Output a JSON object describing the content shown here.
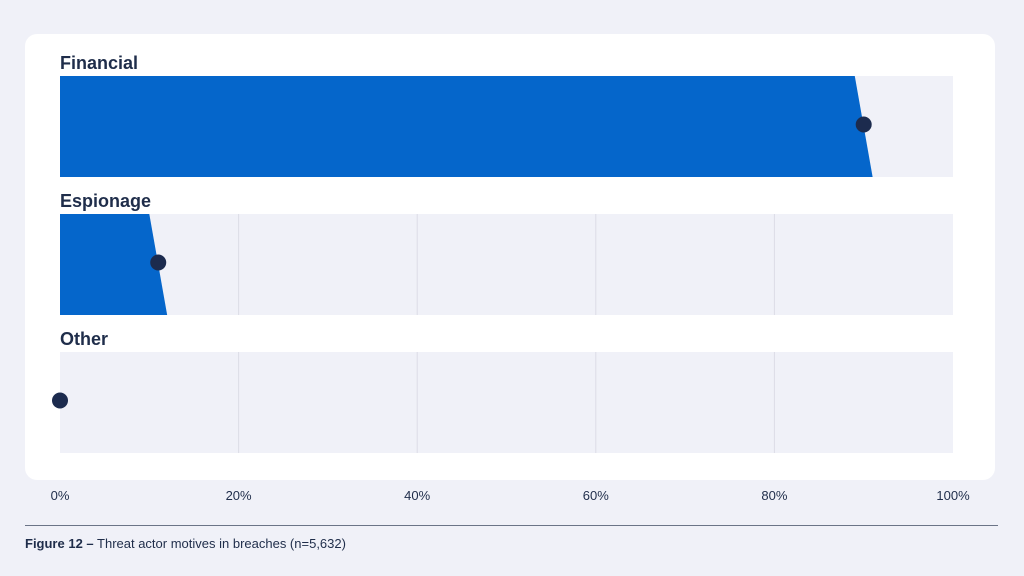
{
  "chart_data": {
    "type": "bar",
    "orientation": "horizontal",
    "categories": [
      "Financial",
      "Espionage",
      "Other"
    ],
    "series": [
      {
        "values": [
          90,
          11,
          0
        ]
      }
    ],
    "interval_low": [
      89,
      10,
      0
    ],
    "interval_high": [
      91,
      12,
      0
    ],
    "xlim": [
      0,
      100
    ],
    "x_ticks": [
      "0%",
      "20%",
      "40%",
      "60%",
      "80%",
      "100%"
    ],
    "grid": true,
    "colors": {
      "bar": "#0566cb",
      "track": "#f0f1f8",
      "point": "#1c2b4e",
      "grid": "#dcdde6"
    }
  },
  "caption": {
    "label": "Figure 12 –",
    "text": " Threat actor motives in breaches (n=5,632)"
  }
}
